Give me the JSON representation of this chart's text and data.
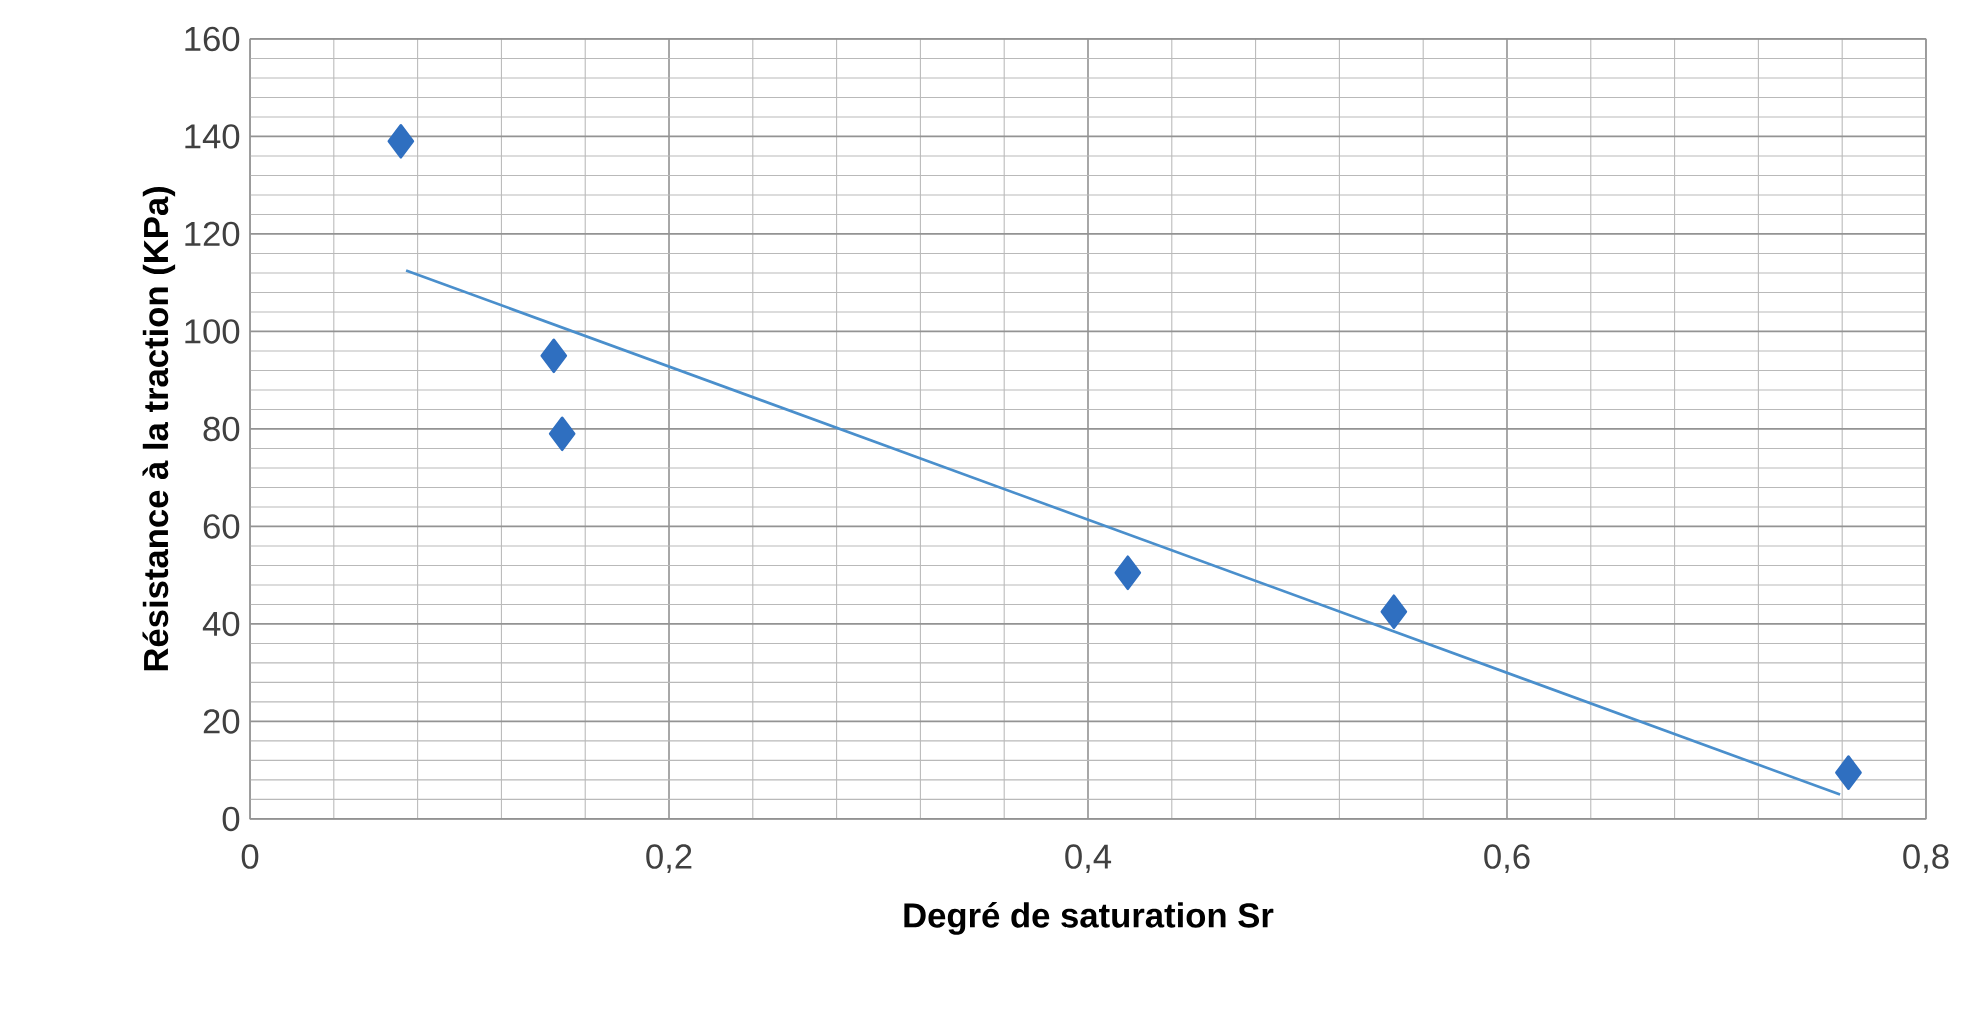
{
  "chart_data": {
    "type": "scatter",
    "xlabel": "Degré de saturation Sr",
    "ylabel": "Résistance à la traction (KPa)",
    "series": [
      {
        "color": "#2f6fc0",
        "marker": "diamond",
        "x": [
          0.072,
          0.145,
          0.149,
          0.419,
          0.546,
          0.763
        ],
        "values": [
          139,
          95,
          79,
          50.5,
          42.5,
          9.5
        ]
      },
      {
        "type": "line",
        "color": "#4a8fcc",
        "marker": "none",
        "x": [
          0.0745,
          0.759
        ],
        "values": [
          112.5,
          5
        ]
      }
    ],
    "xlim": [
      0,
      0.8
    ],
    "ylim": [
      0,
      160
    ],
    "xticks": [
      0,
      {
        "value": 0.2,
        "label": "0,2"
      },
      {
        "value": 0.4,
        "label": "0,4"
      },
      {
        "value": 0.6,
        "label": "0,6"
      },
      {
        "value": 0.8,
        "label": "0,8"
      }
    ],
    "yticks": [
      0,
      20,
      40,
      60,
      80,
      100,
      120,
      140,
      160
    ],
    "grid": true
  }
}
